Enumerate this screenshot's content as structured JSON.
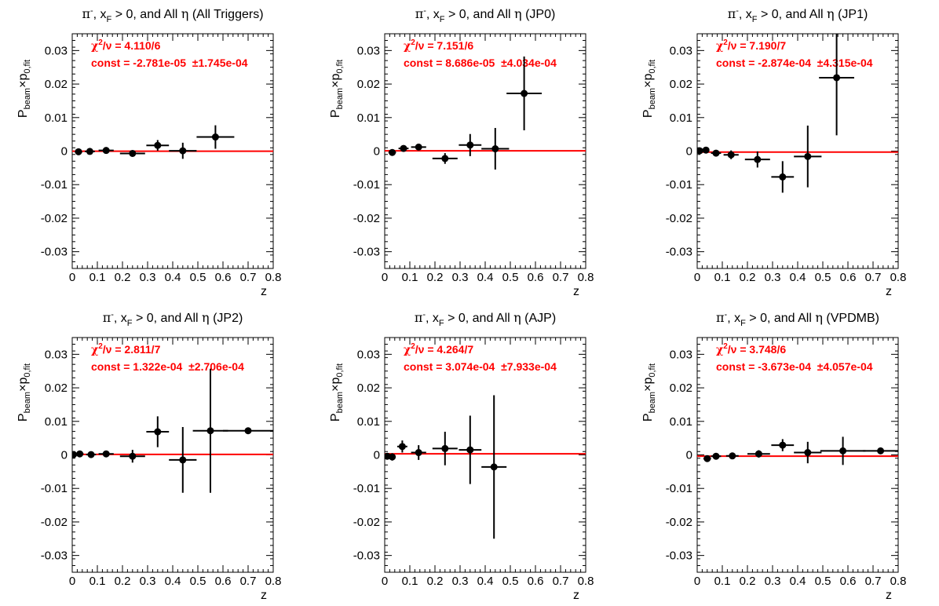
{
  "figure": {
    "grid": "2x3",
    "frame_color": "#000000",
    "fit_line_color": "#ff0000",
    "marker_color": "#000000",
    "stats_color": "#ff0000"
  },
  "chart_data": [
    {
      "type": "scatter",
      "title": {
        "particle": "π",
        "charge": "-",
        "mid": ", x",
        "sub": "F",
        "rest": " > 0, and All ",
        "eta": "η",
        "trigger": " (All Triggers)"
      },
      "xlabel": "z",
      "ylabel": {
        "main": "P",
        "sub1": "beam",
        "times": "×p",
        "sub2": "0,fit"
      },
      "xlim": [
        0,
        0.8
      ],
      "ylim": [
        -0.035,
        0.035
      ],
      "xticks": [
        "0",
        "0.1",
        "0.2",
        "0.3",
        "0.4",
        "0.5",
        "0.6",
        "0.7",
        "0.8"
      ],
      "yticks": [
        "-0.03",
        "-0.02",
        "-0.01",
        "0",
        "0.01",
        "0.02",
        "0.03"
      ],
      "stats": {
        "chi_label": "χ",
        "chi_exp": "2",
        "chi_rest": "/ν = 4.110/6",
        "const_text": "const = -2.781e-05  ±1.745e-04"
      },
      "fit": {
        "const": -2.781e-05,
        "error": 0.0001745
      },
      "points": [
        {
          "x": 0.025,
          "y": -0.0002,
          "xerr": 0.015,
          "yerr": 0.0006
        },
        {
          "x": 0.07,
          "y": -0.0001,
          "xerr": 0.02,
          "yerr": 0.0005
        },
        {
          "x": 0.135,
          "y": 0.0002,
          "xerr": 0.03,
          "yerr": 0.0006
        },
        {
          "x": 0.24,
          "y": -0.0007,
          "xerr": 0.05,
          "yerr": 0.0007
        },
        {
          "x": 0.34,
          "y": 0.0017,
          "xerr": 0.045,
          "yerr": 0.0016
        },
        {
          "x": 0.44,
          "y": 0.0001,
          "xerr": 0.055,
          "yerr": 0.0024
        },
        {
          "x": 0.57,
          "y": 0.0042,
          "xerr": 0.075,
          "yerr": 0.0035
        }
      ]
    },
    {
      "type": "scatter",
      "title": {
        "particle": "π",
        "charge": "-",
        "mid": ", x",
        "sub": "F",
        "rest": " > 0, and All ",
        "eta": "η",
        "trigger": " (JP0)"
      },
      "xlabel": "z",
      "ylabel": {
        "main": "P",
        "sub1": "beam",
        "times": "×p",
        "sub2": "0,fit"
      },
      "xlim": [
        0,
        0.8
      ],
      "ylim": [
        -0.035,
        0.035
      ],
      "xticks": [
        "0",
        "0.1",
        "0.2",
        "0.3",
        "0.4",
        "0.5",
        "0.6",
        "0.7",
        "0.8"
      ],
      "yticks": [
        "-0.03",
        "-0.02",
        "-0.01",
        "0",
        "0.01",
        "0.02",
        "0.03"
      ],
      "stats": {
        "chi_label": "χ",
        "chi_exp": "2",
        "chi_rest": "/ν = 7.151/6",
        "const_text": "const = 8.686e-05  ±4.034e-04"
      },
      "fit": {
        "const": 8.686e-05,
        "error": 0.0004034
      },
      "points": [
        {
          "x": 0.03,
          "y": -0.0004,
          "xerr": 0.015,
          "yerr": 0.0008
        },
        {
          "x": 0.075,
          "y": 0.0008,
          "xerr": 0.02,
          "yerr": 0.0008
        },
        {
          "x": 0.135,
          "y": 0.0012,
          "xerr": 0.03,
          "yerr": 0.0009
        },
        {
          "x": 0.24,
          "y": -0.0022,
          "xerr": 0.05,
          "yerr": 0.0016
        },
        {
          "x": 0.34,
          "y": 0.0018,
          "xerr": 0.045,
          "yerr": 0.0033
        },
        {
          "x": 0.44,
          "y": 0.0007,
          "xerr": 0.055,
          "yerr": 0.0062
        },
        {
          "x": 0.555,
          "y": 0.0172,
          "xerr": 0.07,
          "yerr": 0.011
        }
      ]
    },
    {
      "type": "scatter",
      "title": {
        "particle": "π",
        "charge": "-",
        "mid": ", x",
        "sub": "F",
        "rest": " > 0, and All ",
        "eta": "η",
        "trigger": " (JP1)"
      },
      "xlabel": "z",
      "ylabel": {
        "main": "P",
        "sub1": "beam",
        "times": "×p",
        "sub2": "0,fit"
      },
      "xlim": [
        0,
        0.8
      ],
      "ylim": [
        -0.035,
        0.035
      ],
      "xticks": [
        "0",
        "0.1",
        "0.2",
        "0.3",
        "0.4",
        "0.5",
        "0.6",
        "0.7",
        "0.8"
      ],
      "yticks": [
        "-0.03",
        "-0.02",
        "-0.01",
        "0",
        "0.01",
        "0.02",
        "0.03"
      ],
      "stats": {
        "chi_label": "χ",
        "chi_exp": "2",
        "chi_rest": "/ν = 7.190/7",
        "const_text": "const = -2.874e-04  ±4.315e-04"
      },
      "fit": {
        "const": -0.0002874,
        "error": 0.0004315
      },
      "points": [
        {
          "x": 0.01,
          "y": 0.0001,
          "xerr": 0.008,
          "yerr": 0.0006
        },
        {
          "x": 0.035,
          "y": 0.0003,
          "xerr": 0.012,
          "yerr": 0.0008
        },
        {
          "x": 0.075,
          "y": -0.0006,
          "xerr": 0.02,
          "yerr": 0.0009
        },
        {
          "x": 0.135,
          "y": -0.0011,
          "xerr": 0.03,
          "yerr": 0.0013
        },
        {
          "x": 0.24,
          "y": -0.0025,
          "xerr": 0.05,
          "yerr": 0.0024
        },
        {
          "x": 0.34,
          "y": -0.0077,
          "xerr": 0.045,
          "yerr": 0.0047
        },
        {
          "x": 0.44,
          "y": -0.0016,
          "xerr": 0.055,
          "yerr": 0.0092
        },
        {
          "x": 0.555,
          "y": 0.0219,
          "xerr": 0.07,
          "yerr": 0.0172
        }
      ]
    },
    {
      "type": "scatter",
      "title": {
        "particle": "π",
        "charge": "-",
        "mid": ", x",
        "sub": "F",
        "rest": " > 0, and All ",
        "eta": "η",
        "trigger": " (JP2)"
      },
      "xlabel": "z",
      "ylabel": {
        "main": "P",
        "sub1": "beam",
        "times": "×p",
        "sub2": "0,fit"
      },
      "xlim": [
        0,
        0.8
      ],
      "ylim": [
        -0.035,
        0.035
      ],
      "xticks": [
        "0",
        "0.1",
        "0.2",
        "0.3",
        "0.4",
        "0.5",
        "0.6",
        "0.7",
        "0.8"
      ],
      "yticks": [
        "-0.03",
        "-0.02",
        "-0.01",
        "0",
        "0.01",
        "0.02",
        "0.03"
      ],
      "stats": {
        "chi_label": "χ",
        "chi_exp": "2",
        "chi_rest": "/ν = 2.811/7",
        "const_text": "const = 1.322e-04  ±2.706e-04"
      },
      "fit": {
        "const": 0.0001322,
        "error": 0.0002706
      },
      "points": [
        {
          "x": 0.005,
          "y": 0.0001,
          "xerr": 0.005,
          "yerr": 0.0004
        },
        {
          "x": 0.03,
          "y": 0.0003,
          "xerr": 0.015,
          "yerr": 0.0005
        },
        {
          "x": 0.075,
          "y": 0.0001,
          "xerr": 0.02,
          "yerr": 0.0006
        },
        {
          "x": 0.135,
          "y": 0.0003,
          "xerr": 0.03,
          "yerr": 0.0007
        },
        {
          "x": 0.24,
          "y": -0.0004,
          "xerr": 0.05,
          "yerr": 0.0019
        },
        {
          "x": 0.34,
          "y": 0.0069,
          "xerr": 0.045,
          "yerr": 0.0046
        },
        {
          "x": 0.44,
          "y": -0.0015,
          "xerr": 0.055,
          "yerr": 0.0098
        },
        {
          "x": 0.55,
          "y": 0.0072,
          "xerr": 0.07,
          "yerr": 0.0185
        },
        {
          "x": 0.7,
          "y": 0.0072,
          "xerr": 0.1,
          "yerr": 0.0
        }
      ]
    },
    {
      "type": "scatter",
      "title": {
        "particle": "π",
        "charge": "-",
        "mid": ", x",
        "sub": "F",
        "rest": " > 0, and All ",
        "eta": "η",
        "trigger": " (AJP)"
      },
      "xlabel": "z",
      "ylabel": {
        "main": "P",
        "sub1": "beam",
        "times": "×p",
        "sub2": "0,fit"
      },
      "xlim": [
        0,
        0.8
      ],
      "ylim": [
        -0.035,
        0.035
      ],
      "xticks": [
        "0",
        "0.1",
        "0.2",
        "0.3",
        "0.4",
        "0.5",
        "0.6",
        "0.7",
        "0.8"
      ],
      "yticks": [
        "-0.03",
        "-0.02",
        "-0.01",
        "0",
        "0.01",
        "0.02",
        "0.03"
      ],
      "stats": {
        "chi_label": "χ",
        "chi_exp": "2",
        "chi_rest": "/ν = 4.264/7",
        "const_text": "const = 3.074e-04  ±7.933e-04"
      },
      "fit": {
        "const": 0.0003074,
        "error": 0.0007933
      },
      "points": [
        {
          "x": 0.01,
          "y": -0.0004,
          "xerr": 0.008,
          "yerr": 0.001
        },
        {
          "x": 0.03,
          "y": -0.0006,
          "xerr": 0.012,
          "yerr": 0.0011
        },
        {
          "x": 0.07,
          "y": 0.0025,
          "xerr": 0.02,
          "yerr": 0.0018
        },
        {
          "x": 0.135,
          "y": 0.0007,
          "xerr": 0.03,
          "yerr": 0.0022
        },
        {
          "x": 0.24,
          "y": 0.0019,
          "xerr": 0.05,
          "yerr": 0.005
        },
        {
          "x": 0.34,
          "y": 0.0015,
          "xerr": 0.045,
          "yerr": 0.0102
        },
        {
          "x": 0.435,
          "y": -0.0036,
          "xerr": 0.05,
          "yerr": 0.0214
        }
      ]
    },
    {
      "type": "scatter",
      "title": {
        "particle": "π",
        "charge": "-",
        "mid": ", x",
        "sub": "F",
        "rest": " > 0, and All ",
        "eta": " η",
        "trigger": " (VPDMB)"
      },
      "xlabel": "z",
      "ylabel": {
        "main": "P",
        "sub1": "beam",
        "times": "×p",
        "sub2": "0,fit"
      },
      "xlim": [
        0,
        0.8
      ],
      "ylim": [
        -0.035,
        0.035
      ],
      "xticks": [
        "0",
        "0.1",
        "0.2",
        "0.3",
        "0.4",
        "0.5",
        "0.6",
        "0.7",
        "0.8"
      ],
      "yticks": [
        "-0.03",
        "-0.02",
        "-0.01",
        "0",
        "0.01",
        "0.02",
        "0.03"
      ],
      "stats": {
        "chi_label": "χ",
        "chi_exp": "2",
        "chi_rest": "/ν = 3.748/6",
        "const_text": "const = -3.673e-04  ±4.057e-04"
      },
      "fit": {
        "const": -0.0003673,
        "error": 0.0004057
      },
      "points": [
        {
          "x": 0.04,
          "y": -0.0011,
          "xerr": 0.015,
          "yerr": 0.0007
        },
        {
          "x": 0.075,
          "y": -0.0004,
          "xerr": 0.02,
          "yerr": 0.0006
        },
        {
          "x": 0.14,
          "y": -0.0003,
          "xerr": 0.025,
          "yerr": 0.0006
        },
        {
          "x": 0.245,
          "y": 0.0003,
          "xerr": 0.045,
          "yerr": 0.0011
        },
        {
          "x": 0.34,
          "y": 0.0029,
          "xerr": 0.045,
          "yerr": 0.0018
        },
        {
          "x": 0.44,
          "y": 0.0007,
          "xerr": 0.055,
          "yerr": 0.0032
        },
        {
          "x": 0.58,
          "y": 0.0012,
          "xerr": 0.09,
          "yerr": 0.0042
        },
        {
          "x": 0.73,
          "y": 0.0012,
          "xerr": 0.07,
          "yerr": 0.0
        }
      ]
    }
  ]
}
